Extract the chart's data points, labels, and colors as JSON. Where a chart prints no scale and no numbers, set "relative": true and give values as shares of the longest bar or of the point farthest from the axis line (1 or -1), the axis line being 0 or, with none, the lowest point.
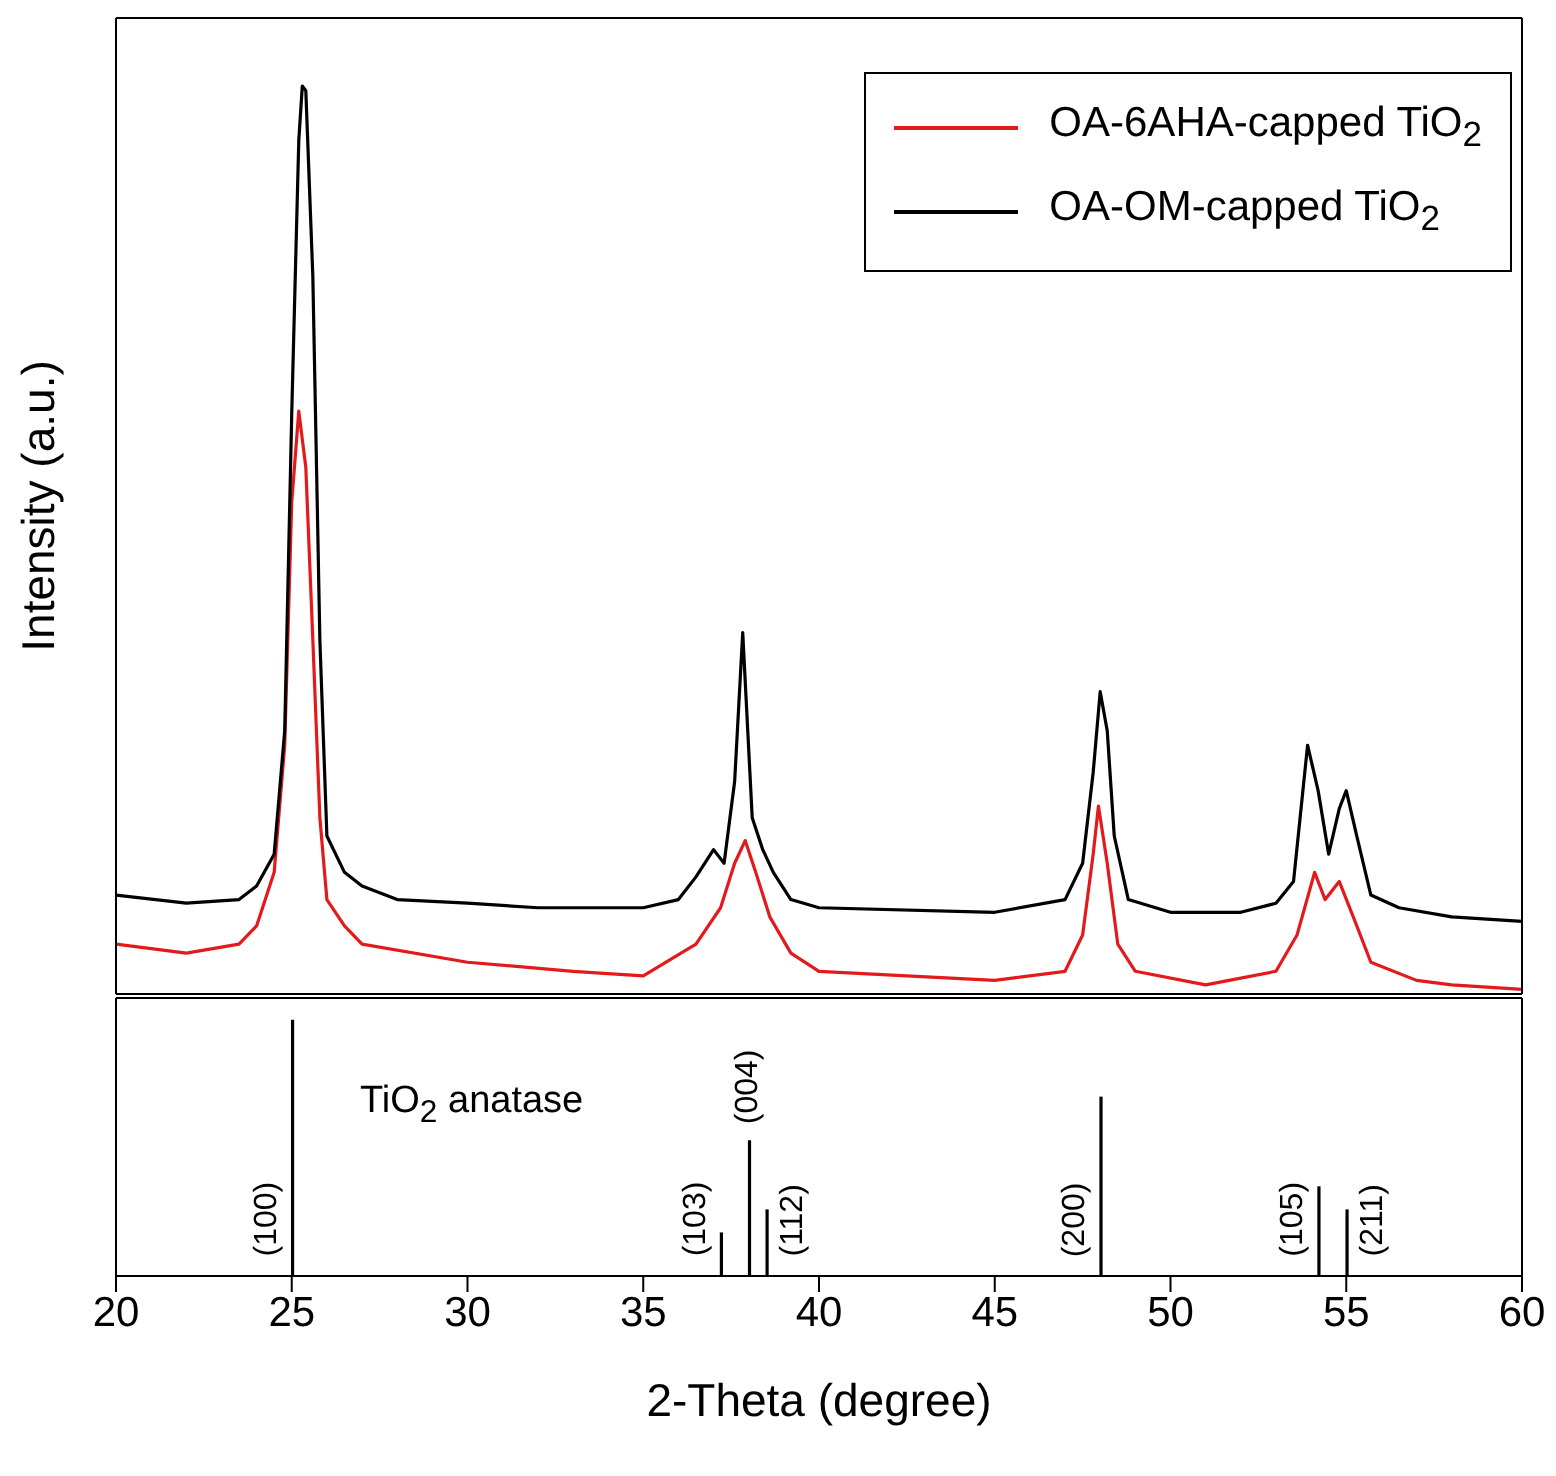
{
  "chart_data": [
    {
      "type": "line",
      "relative": true,
      "ylabel": "Intensity (a.u.)",
      "xlim": [
        20,
        60
      ],
      "tick_labels": false,
      "legend": "top right",
      "line_style": "solid",
      "series": [
        {
          "name": "OA-6AHA-capped TiO$_{2}$",
          "color": "#e31a1c",
          "x": [
            20,
            22,
            23.5,
            24,
            24.5,
            24.8,
            25.0,
            25.2,
            25.4,
            25.6,
            25.8,
            26.0,
            26.5,
            27,
            30,
            33,
            35,
            36.5,
            37.2,
            37.6,
            37.9,
            38.2,
            38.6,
            39.2,
            40,
            45,
            47,
            47.5,
            47.8,
            47.95,
            48.2,
            48.5,
            49,
            51,
            53,
            53.6,
            54.1,
            54.4,
            54.8,
            55.2,
            55.7,
            57,
            58,
            60
          ],
          "values": [
            0.055,
            0.045,
            0.055,
            0.075,
            0.134,
            0.274,
            0.542,
            0.642,
            0.58,
            0.39,
            0.194,
            0.104,
            0.075,
            0.055,
            0.035,
            0.025,
            0.02,
            0.055,
            0.095,
            0.144,
            0.169,
            0.134,
            0.085,
            0.045,
            0.025,
            0.015,
            0.025,
            0.065,
            0.154,
            0.207,
            0.144,
            0.055,
            0.025,
            0.01,
            0.025,
            0.065,
            0.134,
            0.104,
            0.124,
            0.085,
            0.035,
            0.015,
            0.01,
            0.005
          ]
        },
        {
          "name": "OA-OM-capped TiO$_{2}$",
          "color": "#000000",
          "x": [
            20,
            22,
            23.5,
            24,
            24.5,
            24.8,
            25.0,
            25.2,
            25.3,
            25.4,
            25.6,
            25.8,
            26.0,
            26.5,
            27,
            28,
            30,
            32,
            35,
            36,
            36.5,
            37,
            37.3,
            37.6,
            37.83,
            38.1,
            38.4,
            38.7,
            39.2,
            40,
            45,
            47,
            47.5,
            47.8,
            48.0,
            48.2,
            48.4,
            48.8,
            50,
            52,
            53,
            53.5,
            53.9,
            54.2,
            54.5,
            54.8,
            55.0,
            55.3,
            55.7,
            56.5,
            58,
            60
          ],
          "values": [
            0.109,
            0.1,
            0.104,
            0.119,
            0.154,
            0.29,
            0.64,
            0.94,
            1.0,
            0.995,
            0.79,
            0.39,
            0.174,
            0.134,
            0.119,
            0.104,
            0.1,
            0.095,
            0.095,
            0.104,
            0.129,
            0.159,
            0.144,
            0.234,
            0.398,
            0.194,
            0.159,
            0.134,
            0.104,
            0.095,
            0.09,
            0.104,
            0.144,
            0.244,
            0.333,
            0.29,
            0.174,
            0.104,
            0.09,
            0.09,
            0.1,
            0.124,
            0.274,
            0.224,
            0.154,
            0.204,
            0.224,
            0.174,
            0.109,
            0.095,
            0.085,
            0.08
          ]
        }
      ]
    },
    {
      "type": "bar",
      "relative": true,
      "xlabel": "2-Theta (degree)",
      "xlim": [
        20,
        60
      ],
      "xticks": [
        20,
        25,
        30,
        35,
        40,
        45,
        50,
        55,
        60
      ],
      "x": [
        25.0,
        37.2,
        38.0,
        38.5,
        48.0,
        54.2,
        55.0
      ],
      "values": [
        1,
        0.17,
        0.53,
        0.26,
        0.7,
        0.35,
        0.26
      ],
      "color": "#000000",
      "annotations": [
        "TiO$_{2}$ anatase",
        {
          "text": "(100)",
          "x": 25.0,
          "y": 0.25
        },
        {
          "text": "(103)",
          "x": 37.2,
          "y": 0.17
        },
        {
          "text": "(004)",
          "x": 38.0,
          "y": 0.53
        },
        {
          "text": "(112)",
          "x": 38.5,
          "y": 0.26
        },
        {
          "text": "(200)",
          "x": 48.0,
          "y": 0.7
        },
        {
          "text": "(105)",
          "x": 54.2,
          "y": 0.35
        },
        {
          "text": "(211)",
          "x": 55.0,
          "y": 0.26
        }
      ]
    }
  ]
}
